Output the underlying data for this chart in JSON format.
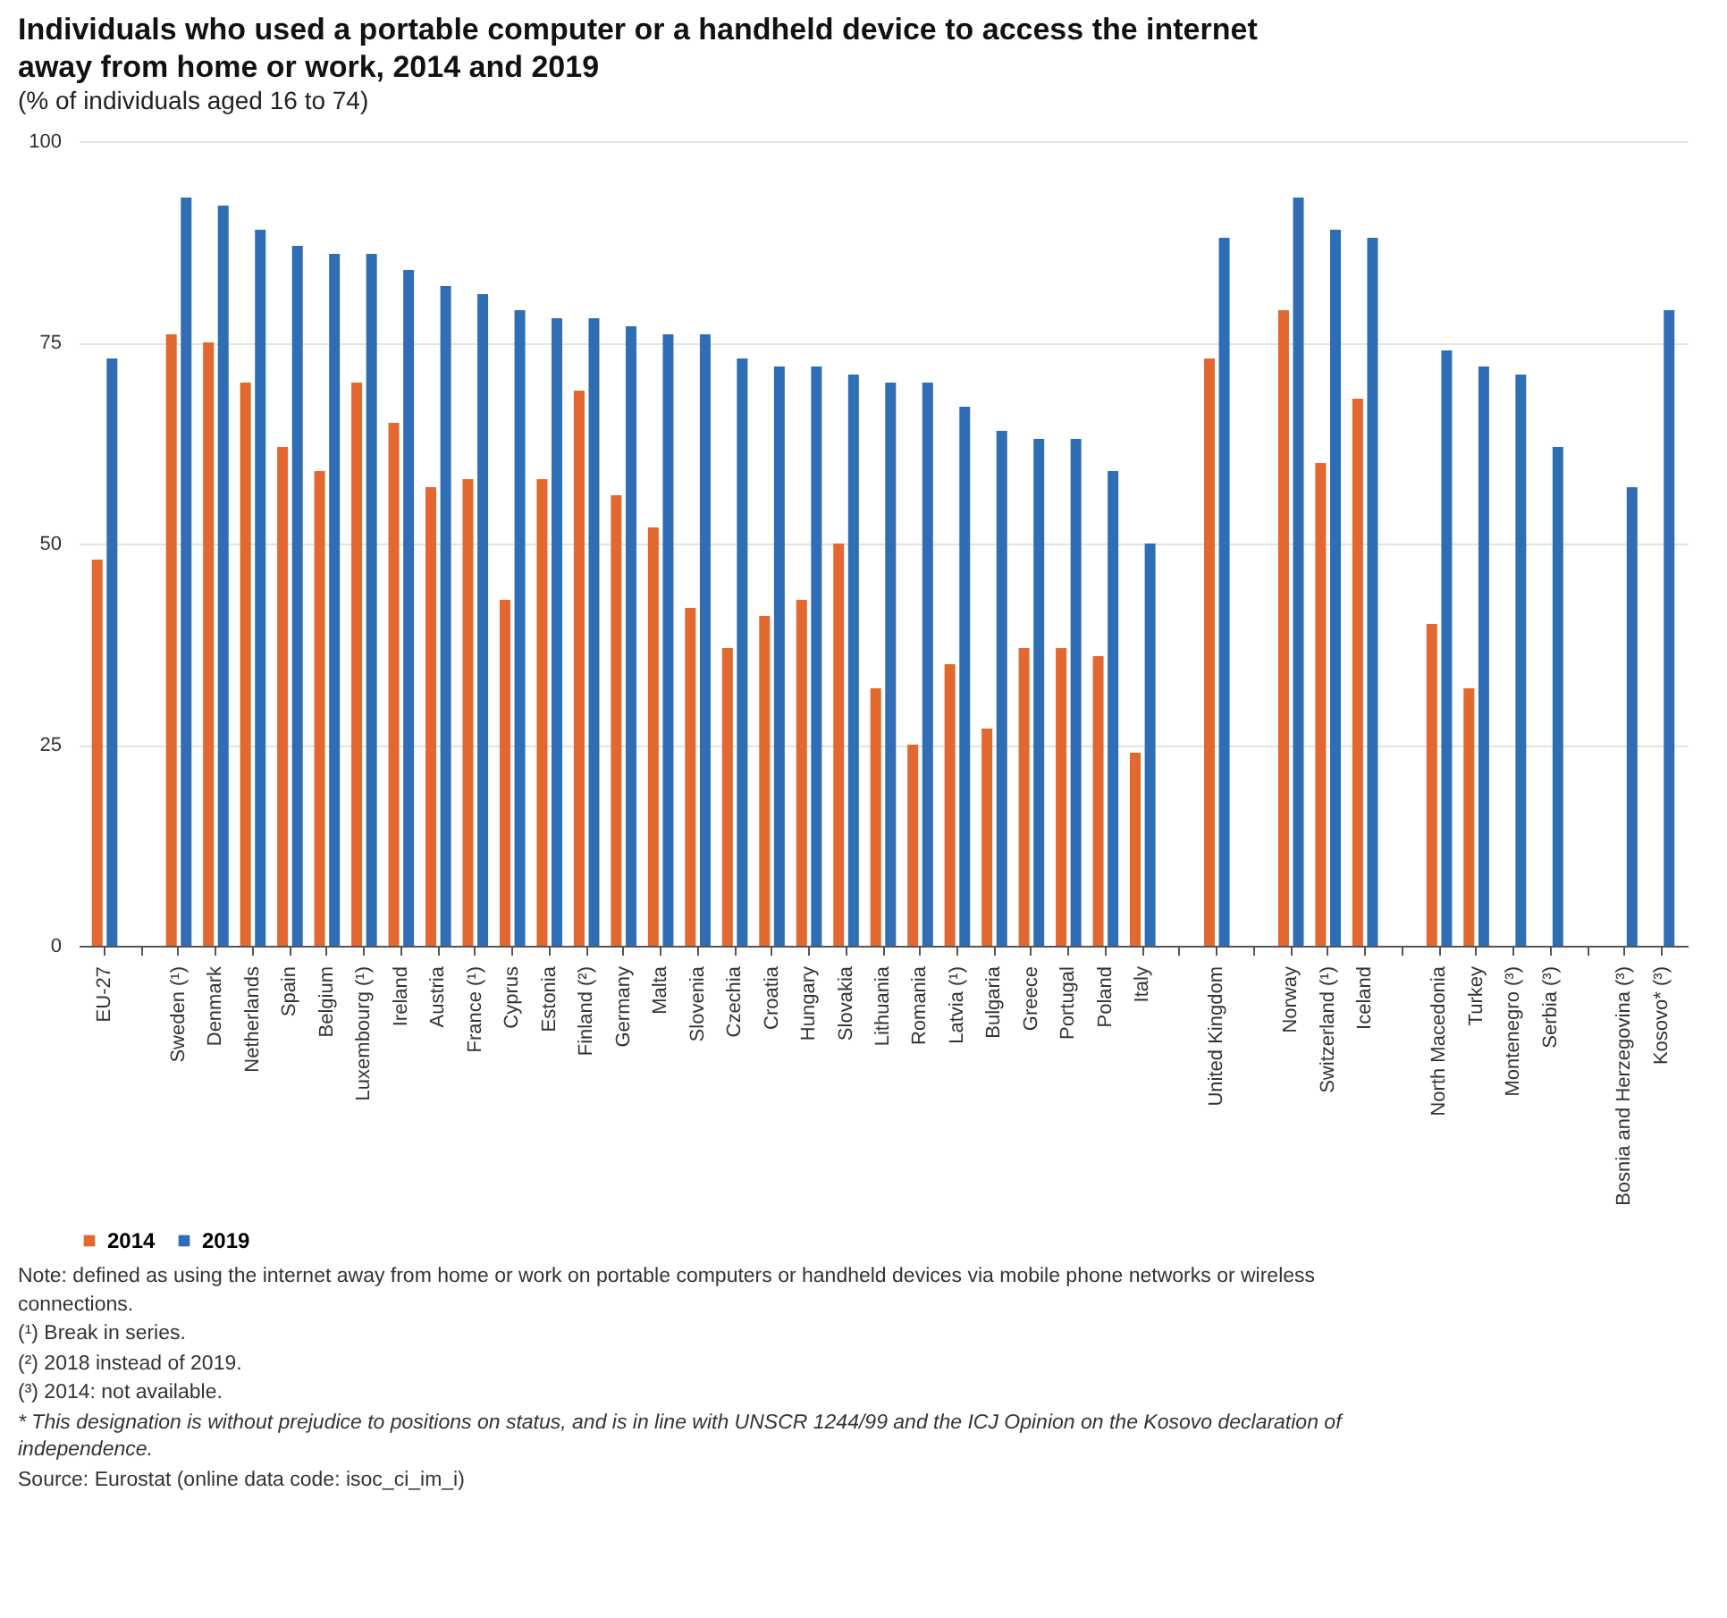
{
  "chart_data": {
    "type": "bar",
    "title": "Individuals who used a portable computer or a handheld device to access the internet away from home or work, 2014 and 2019",
    "subtitle": "(% of individuals aged 16 to 74)",
    "categories": [
      "EU-27",
      null,
      "Sweden (¹)",
      "Denmark",
      "Netherlands",
      "Spain",
      "Belgium",
      "Luxembourg (¹)",
      "Ireland",
      "Austria",
      "France (¹)",
      "Cyprus",
      "Estonia",
      "Finland (²)",
      "Germany",
      "Malta",
      "Slovenia",
      "Czechia",
      "Croatia",
      "Hungary",
      "Slovakia",
      "Lithuania",
      "Romania",
      "Latvia (¹)",
      "Bulgaria",
      "Greece",
      "Portugal",
      "Poland",
      "Italy",
      null,
      "United Kingdom",
      null,
      "Norway",
      "Switzerland (¹)",
      "Iceland",
      null,
      "North Macedonia",
      "Turkey",
      "Montenegro (³)",
      "Serbia (³)",
      null,
      "Bosnia and Herzegovina (³)",
      "Kosovo* (³)"
    ],
    "series": [
      {
        "name": "2014",
        "color": "#e2682f",
        "values": [
          48,
          null,
          76,
          75,
          70,
          62,
          59,
          70,
          65,
          57,
          58,
          43,
          58,
          69,
          56,
          52,
          42,
          37,
          41,
          43,
          50,
          32,
          25,
          35,
          27,
          37,
          37,
          36,
          24,
          null,
          73,
          null,
          79,
          60,
          68,
          null,
          40,
          32,
          null,
          null,
          null,
          null,
          null
        ]
      },
      {
        "name": "2019",
        "color": "#2f6db5",
        "values": [
          73,
          null,
          93,
          92,
          89,
          87,
          86,
          86,
          84,
          82,
          81,
          79,
          78,
          78,
          77,
          76,
          76,
          73,
          72,
          72,
          71,
          70,
          70,
          67,
          64,
          63,
          63,
          59,
          50,
          null,
          88,
          null,
          93,
          89,
          88,
          null,
          74,
          72,
          71,
          62,
          null,
          57,
          79
        ]
      }
    ],
    "ylim": [
      0,
      100
    ],
    "yticks": [
      0,
      25,
      50,
      75,
      100
    ],
    "grid": "y",
    "legend": "bottom",
    "annotations": [
      "Note: defined as using the internet away from home or work on portable computers or handheld devices via mobile phone networks or wireless connections.",
      "(¹) Break in series.",
      "(²) 2018 instead of 2019.",
      "(³) 2014: not available.",
      "* This designation is without prejudice to positions on status, and is in line with UNSCR 1244/99 and the ICJ Opinion on the Kosovo declaration of independence.",
      "Source: Eurostat (online data code: isoc_ci_im_i)"
    ]
  }
}
